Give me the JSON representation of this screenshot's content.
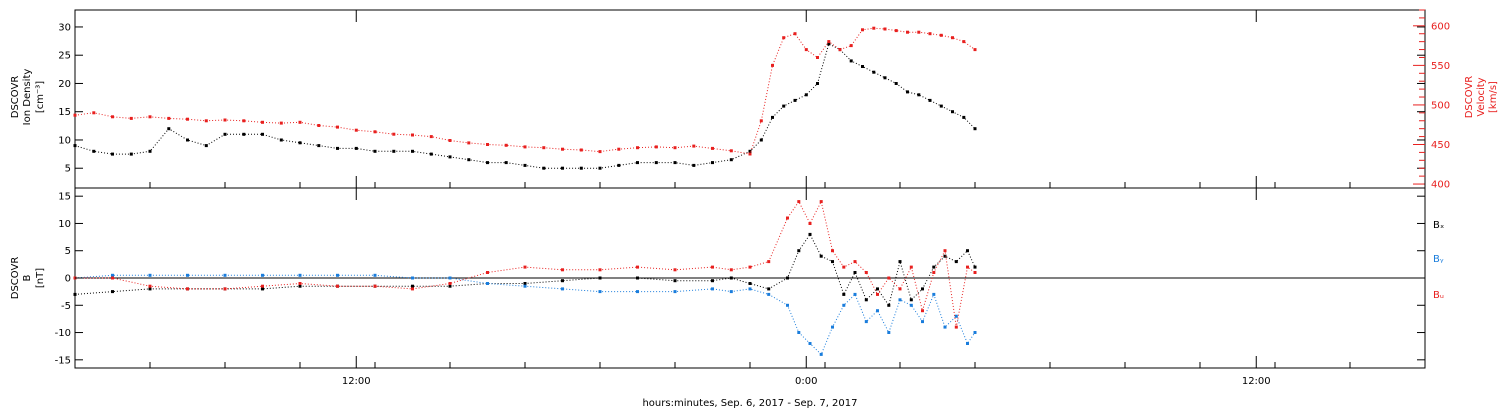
{
  "xaxis": {
    "label": "hours:minutes, Sep.  6, 2017 - Sep.  7, 2017",
    "range_hours": [
      0,
      36
    ],
    "major_ticks": [
      {
        "hour": 7.5,
        "label": "12:00"
      },
      {
        "hour": 19.5,
        "label": "0:00"
      },
      {
        "hour": 31.5,
        "label": "12:00"
      }
    ]
  },
  "panel1": {
    "ylabel_lines": [
      "DSCOVR",
      "Ion Density",
      "[cm⁻³]"
    ],
    "ylabel_right_lines": [
      "DSCOVR",
      "Velocity",
      "[km/s]"
    ],
    "ylim": [
      1.5,
      33
    ],
    "ylim_right": [
      395,
      620
    ],
    "yticks": [
      5,
      10,
      15,
      20,
      25,
      30
    ],
    "yticks_right": [
      400,
      450,
      500,
      550,
      600
    ],
    "colors": {
      "density": "#000000",
      "velocity": "#e8201f"
    }
  },
  "panel2": {
    "ylabel_lines": [
      "DSCOVR",
      "B",
      "[nT]"
    ],
    "ylim": [
      -16.5,
      16.5
    ],
    "yticks": [
      -15,
      -10,
      -5,
      0,
      5,
      10,
      15
    ],
    "legend": [
      {
        "label": "Bₓ",
        "color": "#000000"
      },
      {
        "label": "Bᵧ",
        "color": "#1a7ddc"
      },
      {
        "label": "Bᵤ",
        "color": "#e8201f"
      }
    ]
  },
  "chart_data": [
    {
      "type": "scatter",
      "title": "",
      "xlabel": "hours:minutes, Sep.  6, 2017 - Sep.  7, 2017",
      "ylabel": "DSCOVR Ion Density [cm⁻³]",
      "ylabel_right": "DSCOVR Velocity [km/s]",
      "ylim": [
        1.5,
        33
      ],
      "ylim_right": [
        395,
        620
      ],
      "series": [
        {
          "name": "Ion Density",
          "axis": "left",
          "color": "#000000",
          "x": [
            0,
            0.5,
            1,
            1.5,
            2,
            2.5,
            3,
            3.5,
            4,
            4.5,
            5,
            5.5,
            6,
            6.5,
            7,
            7.5,
            8,
            8.5,
            9,
            9.5,
            10,
            10.5,
            11,
            11.5,
            12,
            12.5,
            13,
            13.5,
            14,
            14.5,
            15,
            15.5,
            16,
            16.5,
            17,
            17.5,
            18,
            18.3,
            18.6,
            18.9,
            19.2,
            19.5,
            19.8,
            20.1,
            20.4,
            20.7,
            21,
            21.3,
            21.6,
            21.9,
            22.2,
            22.5,
            22.8,
            23.1,
            23.4,
            23.7,
            24
          ],
          "y": [
            9,
            8,
            7.5,
            7.5,
            8,
            12,
            10,
            9,
            11,
            11,
            11,
            10,
            9.5,
            9,
            8.5,
            8.5,
            8,
            8,
            8,
            7.5,
            7,
            6.5,
            6,
            6,
            5.5,
            5,
            5,
            5,
            5,
            5.5,
            6,
            6,
            6,
            5.5,
            6,
            6.5,
            8,
            10,
            14,
            16,
            17,
            18,
            20,
            27,
            26,
            24,
            23,
            22,
            21,
            20,
            18.5,
            18,
            17,
            16,
            15,
            14,
            12
          ]
        },
        {
          "name": "Velocity",
          "axis": "right",
          "color": "#e8201f",
          "x": [
            0,
            0.5,
            1,
            1.5,
            2,
            2.5,
            3,
            3.5,
            4,
            4.5,
            5,
            5.5,
            6,
            6.5,
            7,
            7.5,
            8,
            8.5,
            9,
            9.5,
            10,
            10.5,
            11,
            11.5,
            12,
            12.5,
            13,
            13.5,
            14,
            14.5,
            15,
            15.5,
            16,
            16.5,
            17,
            17.5,
            18,
            18.3,
            18.6,
            18.9,
            19.2,
            19.5,
            19.8,
            20.1,
            20.4,
            20.7,
            21,
            21.3,
            21.6,
            21.9,
            22.2,
            22.5,
            22.8,
            23.1,
            23.4,
            23.7,
            24
          ],
          "y": [
            487,
            490,
            485,
            483,
            485,
            483,
            482,
            480,
            481,
            480,
            478,
            477,
            478,
            474,
            472,
            468,
            466,
            463,
            462,
            460,
            455,
            452,
            450,
            449,
            447,
            446,
            444,
            443,
            441,
            444,
            446,
            447,
            446,
            448,
            445,
            442,
            438,
            480,
            550,
            585,
            590,
            570,
            560,
            580,
            570,
            575,
            595,
            597,
            596,
            594,
            592,
            592,
            590,
            588,
            585,
            580,
            570
          ]
        }
      ]
    },
    {
      "type": "scatter",
      "title": "",
      "xlabel": "hours:minutes, Sep.  6, 2017 - Sep.  7, 2017",
      "ylabel": "DSCOVR B [nT]",
      "ylim": [
        -16.5,
        16.5
      ],
      "series": [
        {
          "name": "Bₓ",
          "color": "#000000",
          "x": [
            0,
            1,
            2,
            3,
            4,
            5,
            6,
            7,
            8,
            9,
            10,
            11,
            12,
            13,
            14,
            15,
            16,
            17,
            17.5,
            18,
            18.5,
            19,
            19.3,
            19.6,
            19.9,
            20.2,
            20.5,
            20.8,
            21.1,
            21.4,
            21.7,
            22,
            22.3,
            22.6,
            22.9,
            23.2,
            23.5,
            23.8,
            24
          ],
          "y": [
            -3,
            -2.5,
            -2,
            -2,
            -2,
            -2,
            -1.5,
            -1.5,
            -1.5,
            -1.5,
            -1.5,
            -1,
            -1,
            -0.5,
            0,
            0,
            -0.5,
            -0.5,
            0,
            -1,
            -2,
            0,
            5,
            8,
            4,
            3,
            -3,
            1,
            -4,
            -2,
            -5,
            3,
            -4,
            -2,
            2,
            4,
            3,
            5,
            2
          ]
        },
        {
          "name": "Bᵧ",
          "color": "#1a7ddc",
          "x": [
            0,
            1,
            2,
            3,
            4,
            5,
            6,
            7,
            8,
            9,
            10,
            11,
            12,
            13,
            14,
            15,
            16,
            17,
            17.5,
            18,
            18.5,
            19,
            19.3,
            19.6,
            19.9,
            20.2,
            20.5,
            20.8,
            21.1,
            21.4,
            21.7,
            22,
            22.3,
            22.6,
            22.9,
            23.2,
            23.5,
            23.8,
            24
          ],
          "y": [
            0,
            0.5,
            0.5,
            0.5,
            0.5,
            0.5,
            0.5,
            0.5,
            0.5,
            0,
            0,
            -1,
            -1.5,
            -2,
            -2.5,
            -2.5,
            -2.5,
            -2,
            -2.5,
            -2,
            -3,
            -5,
            -10,
            -12,
            -14,
            -9,
            -5,
            -3,
            -8,
            -6,
            -10,
            -4,
            -5,
            -8,
            -3,
            -9,
            -7,
            -12,
            -10
          ]
        },
        {
          "name": "Bᵤ",
          "color": "#e8201f",
          "x": [
            0,
            1,
            2,
            3,
            4,
            5,
            6,
            7,
            8,
            9,
            10,
            11,
            12,
            13,
            14,
            15,
            16,
            17,
            17.5,
            18,
            18.5,
            19,
            19.3,
            19.6,
            19.9,
            20.2,
            20.5,
            20.8,
            21.1,
            21.4,
            21.7,
            22,
            22.3,
            22.6,
            22.9,
            23.2,
            23.5,
            23.8,
            24
          ],
          "y": [
            0,
            0,
            -1.5,
            -2,
            -2,
            -1.5,
            -1,
            -1.5,
            -1.5,
            -2,
            -1,
            1,
            2,
            1.5,
            1.5,
            2,
            1.5,
            2,
            1.5,
            2,
            3,
            11,
            14,
            10,
            14,
            5,
            2,
            3,
            1,
            -3,
            0,
            -2,
            2,
            -6,
            1,
            5,
            -9,
            2,
            1
          ]
        }
      ]
    }
  ]
}
